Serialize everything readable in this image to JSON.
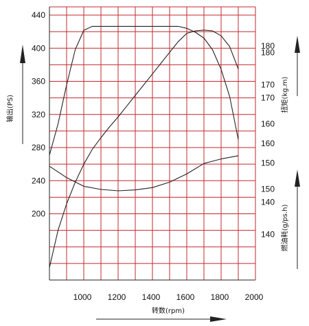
{
  "chart_data": {
    "type": "line",
    "title": "",
    "xlabel": "转数(rpm)",
    "x_ticks": [
      "1000",
      "1200",
      "1400",
      "1600",
      "1800",
      "2000"
    ],
    "xlim": [
      800,
      2000
    ],
    "grid": true,
    "grid_color": "#c0282e",
    "curve_color": "#222222",
    "axes": {
      "power": {
        "label": "输出(PS)",
        "ticks": [
          "200",
          "240",
          "280",
          "320",
          "360",
          "400",
          "440"
        ],
        "ylim": [
          120,
          450
        ]
      },
      "torque": {
        "label": "扭矩(kg.m)",
        "ticks": [
          "140",
          "150",
          "160",
          "170",
          "180"
        ],
        "ylim": [
          120,
          190
        ]
      },
      "fuel": {
        "label": "燃油耗(g/ps.h)",
        "ticks": [
          "140",
          "150",
          "160",
          "170",
          "180"
        ],
        "ylim": [
          130,
          190
        ]
      }
    },
    "series": [
      {
        "axis": "power",
        "x": [
          800,
          850,
          900,
          950,
          1000,
          1050,
          1100,
          1150,
          1200,
          1250,
          1300,
          1350,
          1400,
          1450,
          1500,
          1550,
          1600,
          1650,
          1700,
          1750,
          1800,
          1850,
          1900
        ],
        "values": [
          135,
          180,
          212,
          238,
          260,
          278,
          292,
          305,
          317,
          330,
          343,
          356,
          369,
          382,
          395,
          408,
          418,
          421,
          422,
          421,
          415,
          402,
          375
        ]
      },
      {
        "axis": "torque",
        "x": [
          800,
          850,
          900,
          950,
          1000,
          1050,
          1100,
          1150,
          1200,
          1250,
          1300,
          1350,
          1400,
          1450,
          1500,
          1550,
          1600,
          1650,
          1700,
          1750,
          1800,
          1850,
          1900
        ],
        "values": [
          152,
          160,
          170,
          179,
          184,
          185,
          185,
          185,
          185,
          185,
          185,
          185,
          185,
          185,
          185,
          185,
          184.5,
          183.5,
          182,
          179,
          174,
          167,
          156
        ]
      },
      {
        "axis": "fuel",
        "x": [
          800,
          900,
          1000,
          1100,
          1200,
          1300,
          1400,
          1500,
          1600,
          1700,
          1750,
          1800,
          1900
        ],
        "values": [
          155,
          152.5,
          150.6,
          149.9,
          149.6,
          149.8,
          150.3,
          151.5,
          153.3,
          155.6,
          156.1,
          156.6,
          157.3
        ]
      }
    ]
  }
}
